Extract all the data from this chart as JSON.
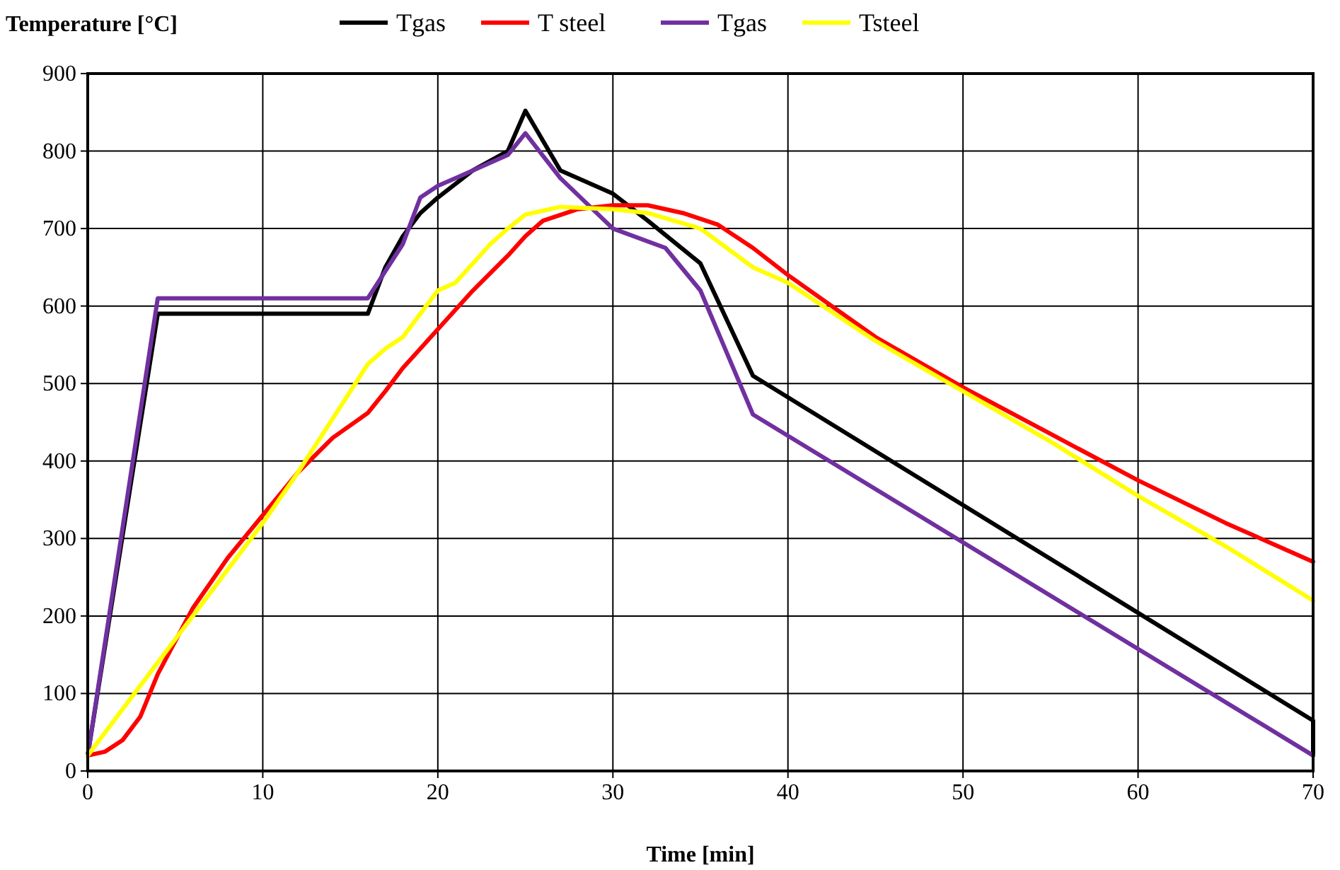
{
  "chart_data": {
    "type": "line",
    "xlabel": "Time [min]",
    "ylabel": "Temperature [°C]",
    "xlim": [
      0,
      70
    ],
    "ylim": [
      0,
      900
    ],
    "xticks": [
      0,
      10,
      20,
      30,
      40,
      50,
      60,
      70
    ],
    "yticks": [
      0,
      100,
      200,
      300,
      400,
      500,
      600,
      700,
      800,
      900
    ],
    "grid": true,
    "legend": "top",
    "marker": "none",
    "line_style": "solid",
    "series": [
      {
        "name": "Tgas",
        "color": "#000000",
        "x": [
          0,
          4,
          16,
          17,
          18,
          19,
          20,
          22,
          24,
          25,
          27,
          30,
          32,
          35,
          38,
          70,
          70
        ],
        "values": [
          20,
          590,
          590,
          650,
          690,
          720,
          740,
          775,
          800,
          852,
          775,
          745,
          710,
          655,
          510,
          65,
          20
        ]
      },
      {
        "name": "T steel",
        "color": "#ff0000",
        "x": [
          0,
          1,
          2,
          3,
          4,
          6,
          8,
          10,
          12,
          14,
          16,
          17,
          18,
          20,
          22,
          24,
          25,
          26,
          28,
          30,
          32,
          34,
          36,
          38,
          40,
          45,
          50,
          55,
          60,
          65,
          70
        ],
        "values": [
          20,
          25,
          40,
          70,
          125,
          210,
          275,
          330,
          385,
          430,
          462,
          490,
          520,
          570,
          620,
          665,
          690,
          710,
          725,
          730,
          730,
          720,
          705,
          675,
          640,
          560,
          495,
          435,
          375,
          320,
          270
        ]
      },
      {
        "name": "Tgas",
        "color": "#7030a0",
        "x": [
          0,
          4,
          16,
          18,
          19,
          20,
          21,
          24,
          25,
          27,
          30,
          33,
          35,
          38,
          70
        ],
        "values": [
          20,
          610,
          610,
          680,
          740,
          755,
          765,
          795,
          823,
          765,
          700,
          675,
          620,
          460,
          20
        ]
      },
      {
        "name": "Tsteel",
        "color": "#ffff00",
        "x": [
          0,
          2,
          4,
          6,
          8,
          10,
          12,
          14,
          16,
          17,
          18,
          19,
          20,
          21,
          22,
          23,
          24,
          25,
          27,
          30,
          32,
          35,
          38,
          40,
          45,
          50,
          55,
          60,
          65,
          70
        ],
        "values": [
          20,
          80,
          140,
          200,
          260,
          320,
          385,
          455,
          525,
          545,
          560,
          590,
          620,
          630,
          655,
          680,
          700,
          718,
          728,
          725,
          720,
          700,
          650,
          630,
          555,
          490,
          425,
          355,
          290,
          220
        ]
      }
    ]
  }
}
